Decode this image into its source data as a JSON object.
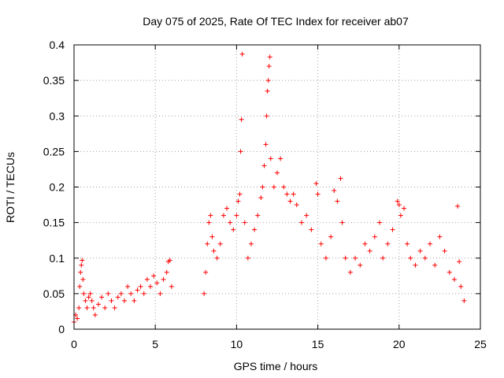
{
  "chart_data": {
    "type": "scatter",
    "title": "Day 075 of 2025, Rate Of TEC Index for receiver ab07",
    "xlabel": "GPS time / hours",
    "ylabel": "ROTI / TECUs",
    "xlim": [
      0,
      25
    ],
    "ylim": [
      0,
      0.4
    ],
    "xticks": [
      0,
      5,
      10,
      15,
      20,
      25
    ],
    "xtick_labels": [
      "0",
      "5",
      "10",
      "15",
      "20",
      "25"
    ],
    "yticks": [
      0,
      0.05,
      0.1,
      0.15,
      0.2,
      0.25,
      0.3,
      0.35,
      0.4
    ],
    "ytick_labels": [
      "0",
      "0.05",
      "0.1",
      "0.15",
      "0.2",
      "0.25",
      "0.3",
      "0.35",
      "0.4"
    ],
    "grid": true,
    "marker": "+",
    "series": [
      {
        "name": "ROTI",
        "color": "#ff0000",
        "points": [
          [
            0.0,
            0.01
          ],
          [
            0.1,
            0.02
          ],
          [
            0.2,
            0.015
          ],
          [
            0.3,
            0.03
          ],
          [
            0.35,
            0.06
          ],
          [
            0.4,
            0.08
          ],
          [
            0.45,
            0.09
          ],
          [
            0.5,
            0.097
          ],
          [
            0.55,
            0.07
          ],
          [
            0.6,
            0.05
          ],
          [
            0.7,
            0.04
          ],
          [
            0.8,
            0.03
          ],
          [
            0.9,
            0.045
          ],
          [
            1.0,
            0.05
          ],
          [
            1.1,
            0.04
          ],
          [
            1.2,
            0.03
          ],
          [
            1.3,
            0.02
          ],
          [
            1.5,
            0.035
          ],
          [
            1.7,
            0.045
          ],
          [
            1.9,
            0.03
          ],
          [
            2.1,
            0.05
          ],
          [
            2.3,
            0.04
          ],
          [
            2.5,
            0.03
          ],
          [
            2.7,
            0.045
          ],
          [
            2.9,
            0.05
          ],
          [
            3.1,
            0.04
          ],
          [
            3.3,
            0.06
          ],
          [
            3.5,
            0.05
          ],
          [
            3.7,
            0.04
          ],
          [
            3.9,
            0.055
          ],
          [
            4.1,
            0.06
          ],
          [
            4.3,
            0.05
          ],
          [
            4.5,
            0.07
          ],
          [
            4.7,
            0.06
          ],
          [
            4.9,
            0.075
          ],
          [
            5.1,
            0.065
          ],
          [
            5.3,
            0.05
          ],
          [
            5.5,
            0.07
          ],
          [
            5.7,
            0.08
          ],
          [
            5.8,
            0.095
          ],
          [
            5.9,
            0.097
          ],
          [
            6.0,
            0.06
          ],
          [
            8.0,
            0.05
          ],
          [
            8.1,
            0.08
          ],
          [
            8.2,
            0.12
          ],
          [
            8.3,
            0.15
          ],
          [
            8.4,
            0.16
          ],
          [
            8.5,
            0.13
          ],
          [
            8.6,
            0.11
          ],
          [
            8.8,
            0.1
          ],
          [
            9.0,
            0.12
          ],
          [
            9.2,
            0.16
          ],
          [
            9.4,
            0.17
          ],
          [
            9.6,
            0.15
          ],
          [
            9.8,
            0.14
          ],
          [
            10.0,
            0.16
          ],
          [
            10.1,
            0.18
          ],
          [
            10.2,
            0.19
          ],
          [
            10.25,
            0.25
          ],
          [
            10.3,
            0.295
          ],
          [
            10.35,
            0.387
          ],
          [
            10.5,
            0.15
          ],
          [
            10.7,
            0.1
          ],
          [
            10.9,
            0.12
          ],
          [
            11.1,
            0.14
          ],
          [
            11.3,
            0.16
          ],
          [
            11.5,
            0.185
          ],
          [
            11.6,
            0.2
          ],
          [
            11.7,
            0.23
          ],
          [
            11.8,
            0.26
          ],
          [
            11.85,
            0.3
          ],
          [
            11.9,
            0.335
          ],
          [
            11.95,
            0.35
          ],
          [
            12.0,
            0.37
          ],
          [
            12.05,
            0.383
          ],
          [
            12.1,
            0.24
          ],
          [
            12.3,
            0.2
          ],
          [
            12.5,
            0.22
          ],
          [
            12.7,
            0.24
          ],
          [
            12.9,
            0.2
          ],
          [
            13.1,
            0.19
          ],
          [
            13.3,
            0.18
          ],
          [
            13.5,
            0.19
          ],
          [
            13.7,
            0.175
          ],
          [
            14.0,
            0.15
          ],
          [
            14.3,
            0.16
          ],
          [
            14.6,
            0.14
          ],
          [
            14.9,
            0.205
          ],
          [
            15.0,
            0.19
          ],
          [
            15.2,
            0.12
          ],
          [
            15.5,
            0.1
          ],
          [
            15.8,
            0.13
          ],
          [
            16.0,
            0.195
          ],
          [
            16.2,
            0.18
          ],
          [
            16.4,
            0.212
          ],
          [
            16.5,
            0.15
          ],
          [
            16.7,
            0.1
          ],
          [
            17.0,
            0.08
          ],
          [
            17.3,
            0.1
          ],
          [
            17.6,
            0.09
          ],
          [
            17.9,
            0.12
          ],
          [
            18.2,
            0.11
          ],
          [
            18.5,
            0.13
          ],
          [
            18.8,
            0.15
          ],
          [
            19.0,
            0.1
          ],
          [
            19.3,
            0.12
          ],
          [
            19.6,
            0.14
          ],
          [
            19.9,
            0.18
          ],
          [
            20.0,
            0.175
          ],
          [
            20.1,
            0.16
          ],
          [
            20.3,
            0.17
          ],
          [
            20.5,
            0.12
          ],
          [
            20.7,
            0.1
          ],
          [
            21.0,
            0.09
          ],
          [
            21.3,
            0.11
          ],
          [
            21.6,
            0.1
          ],
          [
            21.9,
            0.12
          ],
          [
            22.2,
            0.09
          ],
          [
            22.5,
            0.13
          ],
          [
            22.8,
            0.11
          ],
          [
            23.1,
            0.08
          ],
          [
            23.4,
            0.07
          ],
          [
            23.6,
            0.173
          ],
          [
            23.7,
            0.095
          ],
          [
            23.8,
            0.06
          ],
          [
            24.0,
            0.04
          ]
        ]
      }
    ]
  }
}
